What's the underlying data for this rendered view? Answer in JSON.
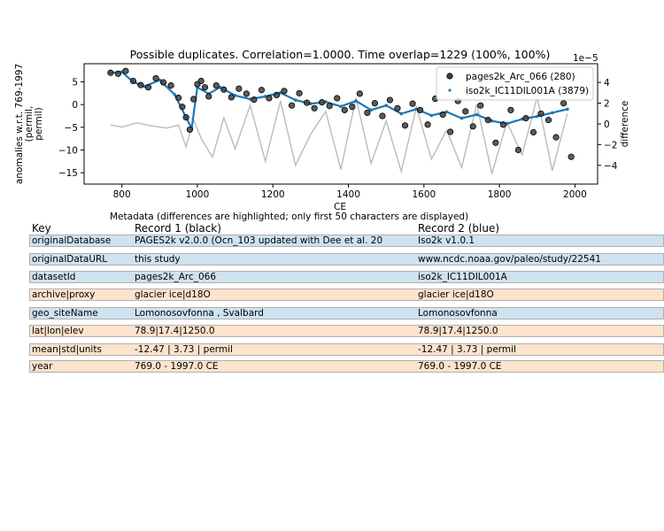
{
  "colors": {
    "series1": "#404040",
    "series2": "#1f77b4",
    "difference": "#bbbbbb",
    "row_highlight": "#fde3cc",
    "row_normal": "#cfe2f0"
  },
  "chart_data": {
    "type": "scatter",
    "title": "Possible duplicates. Correlation=1.0000. Time overlap=1229 (100%, 100%)",
    "xlabel": "CE",
    "ylabel": "anomalies w.r.t. 769-1997\n(permil,\npermil)",
    "y2label": "difference",
    "y2_offset_text": "1e−5",
    "xlim": [
      700,
      2060
    ],
    "ylim": [
      -17.5,
      9
    ],
    "y2lim": [
      -5.8,
      5.8
    ],
    "xticks": [
      800,
      1000,
      1200,
      1400,
      1600,
      1800,
      2000
    ],
    "yticks": [
      5,
      0,
      -5,
      -10,
      -15
    ],
    "y2ticks": [
      4,
      2,
      0,
      -2,
      -4
    ],
    "grid": false,
    "legend_position": "top-right",
    "series": [
      {
        "name": "pages2k_Arc_066 (280)",
        "marker": "circle",
        "x": [
          770,
          790,
          810,
          830,
          850,
          870,
          890,
          910,
          930,
          950,
          960,
          970,
          980,
          990,
          1000,
          1010,
          1020,
          1030,
          1050,
          1070,
          1090,
          1110,
          1130,
          1150,
          1170,
          1190,
          1210,
          1230,
          1250,
          1270,
          1290,
          1310,
          1330,
          1350,
          1370,
          1390,
          1410,
          1430,
          1450,
          1470,
          1490,
          1510,
          1530,
          1550,
          1570,
          1590,
          1610,
          1630,
          1650,
          1670,
          1690,
          1710,
          1730,
          1750,
          1770,
          1790,
          1810,
          1830,
          1850,
          1870,
          1890,
          1910,
          1930,
          1950,
          1970,
          1990
        ],
        "y": [
          7,
          6.8,
          7.4,
          5.2,
          4.3,
          3.8,
          5.8,
          4.9,
          4.2,
          1.5,
          -0.5,
          -2.8,
          -5.5,
          1.2,
          4.5,
          5.2,
          3.8,
          1.8,
          4.2,
          3.3,
          1.6,
          3.5,
          2.4,
          1.1,
          3.2,
          1.4,
          2.1,
          3.0,
          -0.2,
          2.5,
          0.4,
          -0.8,
          0.5,
          -0.3,
          1.4,
          -1.2,
          -0.5,
          2.4,
          -1.8,
          0.3,
          -2.5,
          1.0,
          -0.8,
          -4.6,
          0.2,
          -1.2,
          -4.4,
          1.3,
          -2.2,
          -6.0,
          0.8,
          -1.5,
          -4.8,
          -0.2,
          -3.4,
          -8.4,
          -4.4,
          -1.2,
          -10.0,
          -3.0,
          -6.1,
          -2.0,
          -3.4,
          -7.2,
          0.3,
          -11.5
        ]
      },
      {
        "name": "iso2k_IC11DIL001A (3879)",
        "marker": "point",
        "x": [
          770,
          800,
          830,
          860,
          900,
          940,
          970,
          985,
          1000,
          1030,
          1060,
          1100,
          1140,
          1180,
          1220,
          1260,
          1300,
          1340,
          1380,
          1420,
          1460,
          1500,
          1540,
          1580,
          1620,
          1660,
          1700,
          1740,
          1780,
          1820,
          1860,
          1900,
          1940,
          1980
        ],
        "y": [
          7.0,
          7.2,
          5.0,
          4.0,
          5.4,
          2.2,
          -2.8,
          -5.2,
          3.8,
          2.4,
          3.8,
          2.0,
          1.2,
          1.8,
          2.6,
          1.0,
          0.2,
          0.6,
          -0.4,
          0.8,
          -1.2,
          -0.2,
          -2.0,
          -1.0,
          -2.4,
          -1.6,
          -3.0,
          -2.2,
          -3.6,
          -4.2,
          -3.2,
          -2.6,
          -1.8,
          -1.0
        ]
      },
      {
        "name": "difference",
        "axis": "right",
        "x": [
          770,
          800,
          840,
          880,
          920,
          950,
          970,
          990,
          1010,
          1040,
          1070,
          1100,
          1140,
          1180,
          1220,
          1260,
          1300,
          1340,
          1380,
          1420,
          1460,
          1500,
          1540,
          1580,
          1620,
          1660,
          1700,
          1740,
          1780,
          1820,
          1860,
          1900,
          1940,
          1980
        ],
        "y": [
          -0.1,
          -0.3,
          0.1,
          -0.2,
          -0.4,
          -0.1,
          -2.2,
          0.4,
          -1.4,
          -3.2,
          0.6,
          -2.4,
          1.8,
          -3.6,
          2.2,
          -4.0,
          -1.0,
          1.2,
          -4.4,
          2.5,
          -3.8,
          0.3,
          -4.6,
          1.6,
          -3.4,
          -0.6,
          -4.2,
          1.9,
          -4.8,
          0.2,
          -3.0,
          2.6,
          -4.5,
          1.0
        ]
      }
    ]
  },
  "metadata": {
    "caption": "Metadata (differences are highlighted; only first 50 characters are displayed)",
    "headers": {
      "key": "Key",
      "record1": "Record 1 (black)",
      "record2": "Record 2 (blue)"
    },
    "rows": [
      {
        "key": "originalDatabase",
        "r1": "PAGES2k v2.0.0 (Ocn_103 updated with Dee et al. 20",
        "r2": "Iso2k v1.0.1",
        "highlight": false
      },
      {
        "key": "originalDataURL",
        "r1": "this study",
        "r2": "www.ncdc.noaa.gov/paleo/study/22541",
        "highlight": false
      },
      {
        "key": "datasetId",
        "r1": "pages2k_Arc_066",
        "r2": "iso2k_IC11DIL001A",
        "highlight": false
      },
      {
        "key": "archive|proxy",
        "r1": "glacier ice|d18O",
        "r2": "glacier ice|d18O",
        "highlight": true
      },
      {
        "key": "geo_siteName",
        "r1": "Lomonosovfonna , Svalbard",
        "r2": "Lomonosovfonna",
        "highlight": false
      },
      {
        "key": "lat|lon|elev",
        "r1": "78.9|17.4|1250.0",
        "r2": "78.9|17.4|1250.0",
        "highlight": true
      },
      {
        "key": "mean|std|units",
        "r1": "-12.47 | 3.73 | permil",
        "r2": "-12.47 | 3.73 | permil",
        "highlight": true
      },
      {
        "key": "year",
        "r1": "769.0 - 1997.0 CE",
        "r2": "769.0 - 1997.0 CE",
        "highlight": true
      }
    ]
  }
}
